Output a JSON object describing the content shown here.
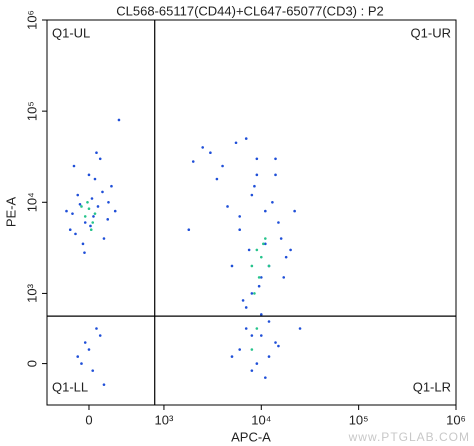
{
  "chart_data": {
    "type": "scatter",
    "title": "CL568-65117(CD44)+CL647-65077(CD3) : P2",
    "x_label": "APC-A",
    "y_label": "PE-A",
    "xscale": "biexponential",
    "yscale": "biexponential",
    "xlim": [
      -560,
      1000000
    ],
    "ylim": [
      -590,
      1000000
    ],
    "xticks": [
      0,
      {
        "value": 1000,
        "label": "10³"
      },
      {
        "value": 10000,
        "label": "10⁴"
      },
      {
        "value": 100000,
        "label": "10⁵"
      },
      {
        "value": 1000000,
        "label": "10⁶"
      }
    ],
    "yticks": [
      0,
      {
        "value": 1000,
        "label": "10³"
      },
      {
        "value": 10000,
        "label": "10⁴"
      },
      {
        "value": 100000,
        "label": "10⁵"
      },
      {
        "value": 1000000,
        "label": "10⁶"
      }
    ],
    "gate": {
      "x": 877,
      "y": 676
    },
    "quadrants": {
      "ul": "Q1-UL",
      "ur": "Q1-UR",
      "ll": "Q1-LL",
      "lr": "Q1-LR"
    },
    "watermark": "www.PTGLAB.COM",
    "series": [
      {
        "color": "#1f4fd8",
        "x": [
          -250,
          -150,
          -80,
          0,
          60,
          120,
          200,
          300,
          -300,
          -200,
          -50,
          40,
          150,
          250,
          -180,
          80,
          -120,
          20,
          180,
          350,
          -60,
          100,
          260,
          -220,
          5000,
          6000,
          7000,
          8000,
          9000,
          10000,
          11000,
          12000,
          14000,
          16000,
          18000,
          4000,
          3000,
          2500,
          6500,
          7500,
          8500,
          9500,
          13000,
          15000,
          20000,
          5500,
          7000,
          10000,
          12000,
          9000,
          8000,
          11000,
          6000,
          17000,
          3500,
          4500,
          2000,
          22000,
          14000,
          8000,
          6000,
          8000,
          10000,
          12000,
          7000,
          9000,
          11000,
          14000,
          5000,
          15000,
          -150,
          -50,
          50,
          150,
          0,
          -100,
          100,
          200,
          400,
          1800,
          25000
        ],
        "y": [
          5000,
          12000,
          3500,
          20000,
          7000,
          9000,
          4000,
          15000,
          8000,
          25000,
          6000,
          11000,
          30000,
          6500,
          4500,
          18000,
          9500,
          5500,
          13000,
          8000,
          2800,
          35000,
          10000,
          7500,
          2000,
          5000,
          800,
          12000,
          30000,
          1500,
          8000,
          600,
          20000,
          4000,
          2500,
          25000,
          35000,
          40000,
          900,
          3000,
          15000,
          1200,
          10000,
          6000,
          3000,
          45000,
          50000,
          700,
          2000,
          20000,
          1000,
          3500,
          7000,
          1500,
          18000,
          9000,
          28000,
          8000,
          30000,
          400,
          200,
          -100,
          400,
          100,
          500,
          0,
          -200,
          300,
          100,
          250,
          100,
          300,
          -100,
          400,
          200,
          0,
          500,
          -300,
          80000,
          5000,
          500
        ]
      },
      {
        "color": "#27c48c",
        "x": [
          -50,
          0,
          50,
          -20,
          30,
          80,
          -100,
          8000,
          9000,
          10000,
          11000,
          9500,
          8500,
          10500,
          12000,
          9000,
          8000
        ],
        "y": [
          7000,
          8500,
          6000,
          10000,
          5000,
          7500,
          9000,
          2000,
          3000,
          2500,
          4000,
          1500,
          1000,
          3500,
          2000,
          500,
          200
        ]
      }
    ]
  }
}
